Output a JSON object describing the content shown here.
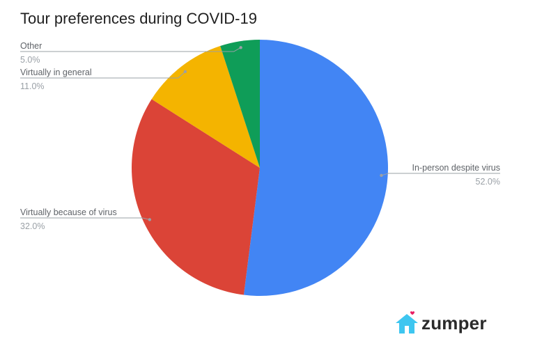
{
  "chart_data": {
    "type": "pie",
    "title": "Tour preferences during COVID-19",
    "slices": [
      {
        "label": "In-person despite virus",
        "value": 52.0,
        "display": "52.0%",
        "color": "#4285f4"
      },
      {
        "label": "Virtually because of virus",
        "value": 32.0,
        "display": "32.0%",
        "color": "#db4437"
      },
      {
        "label": "Virtually in general",
        "value": 11.0,
        "display": "11.0%",
        "color": "#f4b400"
      },
      {
        "label": "Other",
        "value": 5.0,
        "display": "5.0%",
        "color": "#0f9d58"
      }
    ]
  },
  "brand": {
    "name": "zumper",
    "icon": "house-heart-icon",
    "icon_color": "#3ec6f0",
    "heart_color": "#e91e63"
  }
}
